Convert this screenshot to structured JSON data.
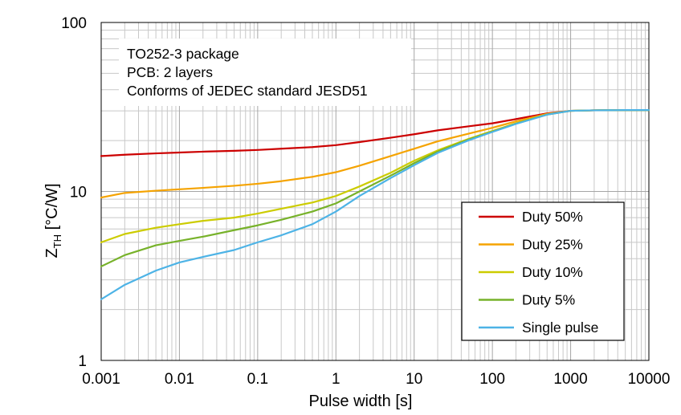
{
  "chart_data": {
    "type": "line",
    "x_scale": "log",
    "y_scale": "log",
    "xlim": [
      0.001,
      10000
    ],
    "ylim": [
      1,
      100
    ],
    "grid": true,
    "legend_position": "bottom-right",
    "xlabel": "Pulse width [s]",
    "ylabel": {
      "main": "Z",
      "sub": "TH",
      "rest": " [°C/W]"
    },
    "x_ticks": [
      {
        "value": 0.001,
        "label": "0.001"
      },
      {
        "value": 0.01,
        "label": "0.01"
      },
      {
        "value": 0.1,
        "label": "0.1"
      },
      {
        "value": 1,
        "label": "1"
      },
      {
        "value": 10,
        "label": "10"
      },
      {
        "value": 100,
        "label": "100"
      },
      {
        "value": 1000,
        "label": "1000"
      },
      {
        "value": 10000,
        "label": "10000"
      }
    ],
    "y_ticks": [
      {
        "value": 1,
        "label": "1"
      },
      {
        "value": 10,
        "label": "10"
      },
      {
        "value": 100,
        "label": "100"
      }
    ],
    "annotation_lines": [
      "TO252-3 package",
      "PCB: 2 layers",
      "Conforms of JEDEC standard JESD51"
    ],
    "series": [
      {
        "name": "Duty 50%",
        "color": "#cc0000",
        "points": [
          [
            0.001,
            16.2
          ],
          [
            0.002,
            16.5
          ],
          [
            0.005,
            16.8
          ],
          [
            0.01,
            17.0
          ],
          [
            0.02,
            17.2
          ],
          [
            0.05,
            17.4
          ],
          [
            0.1,
            17.6
          ],
          [
            0.2,
            17.9
          ],
          [
            0.5,
            18.3
          ],
          [
            1,
            18.8
          ],
          [
            2,
            19.6
          ],
          [
            5,
            20.8
          ],
          [
            10,
            21.8
          ],
          [
            20,
            23.0
          ],
          [
            50,
            24.3
          ],
          [
            100,
            25.3
          ],
          [
            200,
            26.8
          ],
          [
            500,
            29.0
          ],
          [
            1000,
            30.0
          ],
          [
            2000,
            30.2
          ],
          [
            5000,
            30.3
          ],
          [
            10000,
            30.3
          ]
        ]
      },
      {
        "name": "Duty 25%",
        "color": "#f5a300",
        "points": [
          [
            0.001,
            9.2
          ],
          [
            0.002,
            9.8
          ],
          [
            0.005,
            10.1
          ],
          [
            0.01,
            10.3
          ],
          [
            0.02,
            10.5
          ],
          [
            0.05,
            10.8
          ],
          [
            0.1,
            11.1
          ],
          [
            0.2,
            11.5
          ],
          [
            0.5,
            12.2
          ],
          [
            1,
            13.0
          ],
          [
            2,
            14.2
          ],
          [
            5,
            16.2
          ],
          [
            10,
            17.9
          ],
          [
            20,
            19.8
          ],
          [
            50,
            22.0
          ],
          [
            100,
            23.8
          ],
          [
            200,
            26.0
          ],
          [
            500,
            28.8
          ],
          [
            1000,
            30.0
          ],
          [
            2000,
            30.2
          ],
          [
            5000,
            30.3
          ],
          [
            10000,
            30.3
          ]
        ]
      },
      {
        "name": "Duty 10%",
        "color": "#cccc00",
        "points": [
          [
            0.001,
            5.0
          ],
          [
            0.002,
            5.6
          ],
          [
            0.005,
            6.1
          ],
          [
            0.01,
            6.4
          ],
          [
            0.02,
            6.7
          ],
          [
            0.05,
            7.0
          ],
          [
            0.1,
            7.4
          ],
          [
            0.2,
            7.9
          ],
          [
            0.5,
            8.6
          ],
          [
            1,
            9.4
          ],
          [
            2,
            10.7
          ],
          [
            5,
            12.9
          ],
          [
            10,
            15.2
          ],
          [
            20,
            17.5
          ],
          [
            50,
            20.5
          ],
          [
            100,
            22.8
          ],
          [
            200,
            25.3
          ],
          [
            500,
            28.6
          ],
          [
            1000,
            30.0
          ],
          [
            2000,
            30.2
          ],
          [
            5000,
            30.3
          ],
          [
            10000,
            30.3
          ]
        ]
      },
      {
        "name": "Duty 5%",
        "color": "#77b22a",
        "points": [
          [
            0.001,
            3.6
          ],
          [
            0.002,
            4.2
          ],
          [
            0.005,
            4.8
          ],
          [
            0.01,
            5.1
          ],
          [
            0.02,
            5.4
          ],
          [
            0.05,
            5.9
          ],
          [
            0.1,
            6.3
          ],
          [
            0.2,
            6.8
          ],
          [
            0.5,
            7.6
          ],
          [
            1,
            8.5
          ],
          [
            2,
            10.0
          ],
          [
            5,
            12.4
          ],
          [
            10,
            14.7
          ],
          [
            20,
            17.2
          ],
          [
            50,
            20.3
          ],
          [
            100,
            22.6
          ],
          [
            200,
            25.2
          ],
          [
            500,
            28.5
          ],
          [
            1000,
            30.0
          ],
          [
            2000,
            30.2
          ],
          [
            5000,
            30.3
          ],
          [
            10000,
            30.3
          ]
        ]
      },
      {
        "name": "Single pulse",
        "color": "#4db3e6",
        "points": [
          [
            0.001,
            2.3
          ],
          [
            0.002,
            2.8
          ],
          [
            0.005,
            3.4
          ],
          [
            0.01,
            3.8
          ],
          [
            0.02,
            4.1
          ],
          [
            0.05,
            4.5
          ],
          [
            0.1,
            5.0
          ],
          [
            0.2,
            5.5
          ],
          [
            0.5,
            6.4
          ],
          [
            1,
            7.6
          ],
          [
            2,
            9.4
          ],
          [
            5,
            12.0
          ],
          [
            10,
            14.3
          ],
          [
            20,
            16.9
          ],
          [
            50,
            20.1
          ],
          [
            100,
            22.5
          ],
          [
            200,
            25.1
          ],
          [
            500,
            28.5
          ],
          [
            1000,
            30.0
          ],
          [
            2000,
            30.2
          ],
          [
            5000,
            30.3
          ],
          [
            10000,
            30.3
          ]
        ]
      }
    ]
  }
}
